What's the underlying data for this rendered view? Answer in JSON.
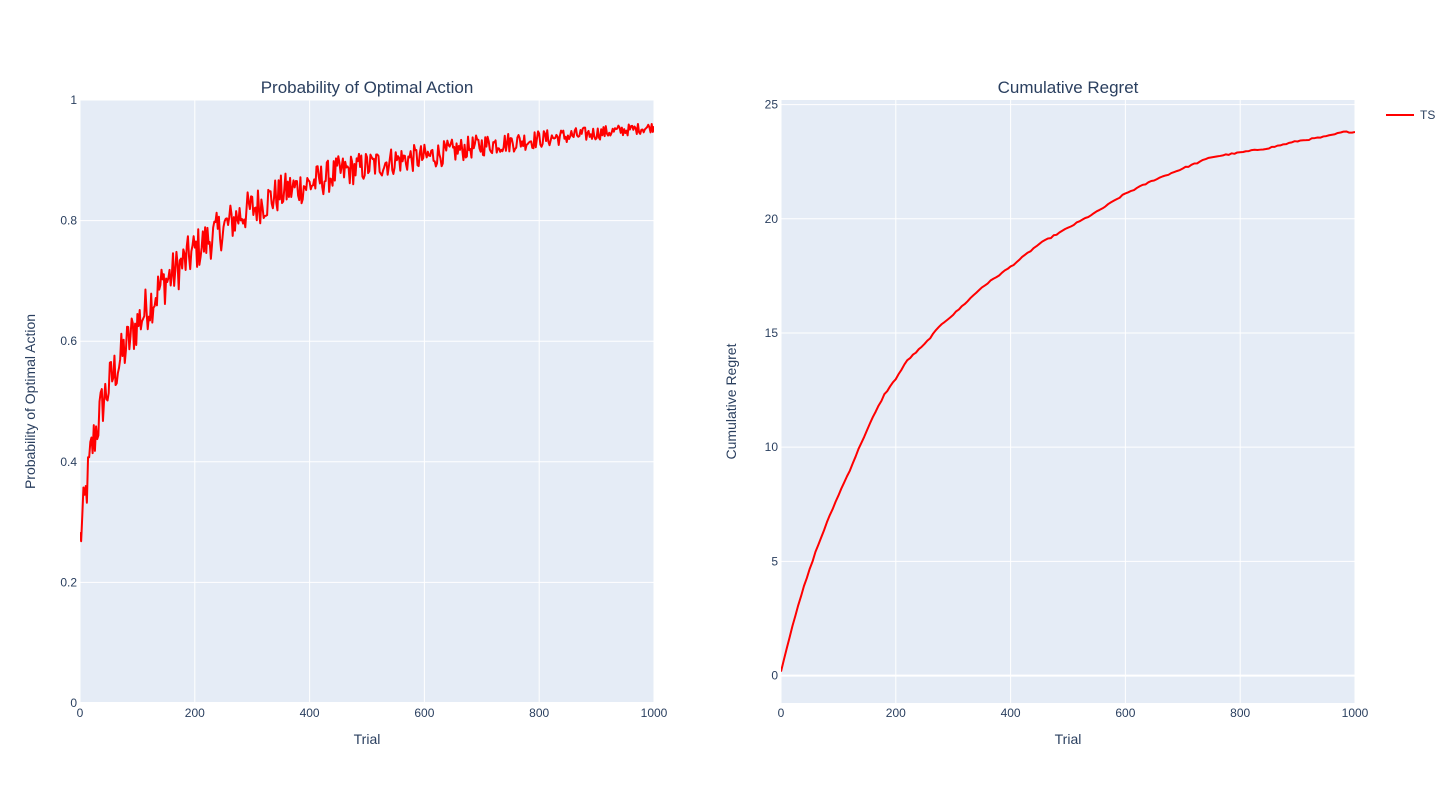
{
  "colors": {
    "plot_bg": "#e5ecf6",
    "grid": "#ffffff",
    "text": "#2a3f5f",
    "series": "#ff0000"
  },
  "legend": {
    "entries": [
      {
        "name": "TS",
        "color": "#ff0000"
      }
    ],
    "placement": "top-right"
  },
  "chart_data": [
    {
      "type": "line",
      "title": "Probability of Optimal Action",
      "xlabel": "Trial",
      "ylabel": "Probability of Optimal Action",
      "xlim": [
        0,
        1000
      ],
      "ylim": [
        0,
        1
      ],
      "xticks": [
        0,
        200,
        400,
        600,
        800,
        1000
      ],
      "yticks": [
        0,
        0.2,
        0.4,
        0.6,
        0.8,
        1
      ],
      "grid": true,
      "series": [
        {
          "color": "#ff0000",
          "note_values": "noisy line, approximate trend sampled every 20 trials",
          "x": [
            0,
            20,
            40,
            60,
            80,
            100,
            120,
            140,
            160,
            180,
            200,
            240,
            280,
            320,
            360,
            400,
            450,
            500,
            550,
            600,
            650,
            700,
            750,
            800,
            850,
            900,
            950,
            1000
          ],
          "y": [
            0.27,
            0.42,
            0.5,
            0.55,
            0.59,
            0.63,
            0.66,
            0.69,
            0.71,
            0.73,
            0.75,
            0.78,
            0.81,
            0.83,
            0.85,
            0.86,
            0.88,
            0.89,
            0.9,
            0.905,
            0.915,
            0.925,
            0.93,
            0.935,
            0.94,
            0.945,
            0.95,
            0.955
          ]
        }
      ]
    },
    {
      "type": "line",
      "title": "Cumulative Regret",
      "xlabel": "Trial",
      "ylabel": "Cumulative Regret",
      "xlim": [
        0,
        1000
      ],
      "ylim": [
        -1.2,
        25.2
      ],
      "xticks": [
        0,
        200,
        400,
        600,
        800,
        1000
      ],
      "yticks": [
        0,
        5,
        10,
        15,
        20,
        25
      ],
      "grid": true,
      "series": [
        {
          "name": "TS",
          "color": "#ff0000",
          "x": [
            0,
            20,
            40,
            60,
            80,
            100,
            120,
            140,
            160,
            180,
            200,
            220,
            250,
            280,
            300,
            350,
            400,
            450,
            500,
            550,
            600,
            650,
            700,
            750,
            800,
            850,
            900,
            950,
            980,
            1000
          ],
          "y": [
            0.2,
            2.2,
            3.9,
            5.4,
            6.7,
            7.9,
            9.0,
            10.2,
            11.3,
            12.3,
            13.0,
            13.8,
            14.5,
            15.4,
            15.8,
            17.0,
            17.9,
            18.9,
            19.6,
            20.3,
            21.1,
            21.7,
            22.2,
            22.7,
            22.9,
            23.1,
            23.4,
            23.6,
            23.8,
            23.8
          ]
        }
      ]
    }
  ]
}
